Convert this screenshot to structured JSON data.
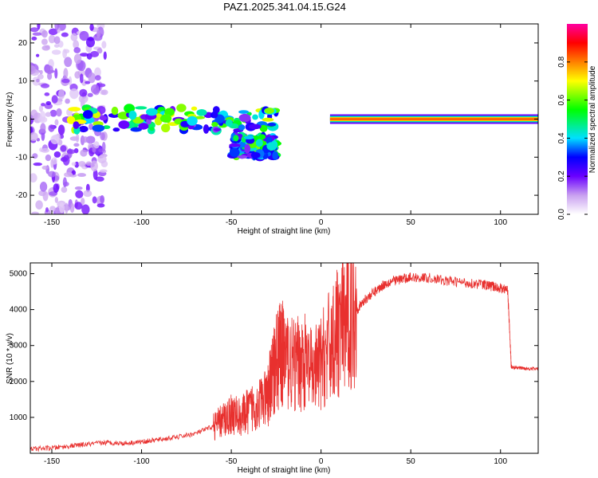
{
  "title": "PAZ1.2025.341.04.15.G24",
  "chart_data": [
    {
      "type": "heatmap",
      "title": "PAZ1.2025.341.04.15.G24",
      "xlabel": "Height of straight line (km)",
      "ylabel": "Frequency (Hz)",
      "xlim": [
        -162,
        121
      ],
      "ylim": [
        -25,
        25
      ],
      "xticks": [
        -150,
        -100,
        -50,
        0,
        50,
        100
      ],
      "yticks": [
        -20,
        -10,
        0,
        10,
        20
      ],
      "colorbar": {
        "label": "Normalized spectral amplitude",
        "range": [
          0,
          1
        ],
        "ticks": [
          0.0,
          0.2,
          0.4,
          0.6,
          0.8
        ]
      },
      "features": [
        {
          "x_range": [
            -162,
            -120
          ],
          "description": "scattered noise",
          "level": 0.1
        },
        {
          "x_range": [
            -140,
            -25
          ],
          "freq_center": 0,
          "level": 0.35
        },
        {
          "x_range": [
            -50,
            -25
          ],
          "freq_center": -7,
          "level": 0.3
        },
        {
          "x_range": [
            5,
            121
          ],
          "freq_center": 0,
          "level": 0.85
        }
      ]
    },
    {
      "type": "line",
      "xlabel": "Height of straight line (km)",
      "ylabel": "SNR (10 * v/v)",
      "xlim": [
        -162,
        121
      ],
      "ylim": [
        0,
        5300
      ],
      "xticks": [
        -150,
        -100,
        -50,
        0,
        50,
        100
      ],
      "yticks": [
        1000,
        2000,
        3000,
        4000,
        5000
      ],
      "color": "#e8302e",
      "series": [
        {
          "name": "SNR",
          "x": [
            -162,
            -150,
            -140,
            -130,
            -120,
            -110,
            -100,
            -90,
            -80,
            -70,
            -60,
            -55,
            -50,
            -45,
            -40,
            -35,
            -30,
            -28,
            -25,
            -22,
            -20,
            -15,
            -10,
            -5,
            0,
            5,
            10,
            15,
            20,
            25,
            30,
            35,
            40,
            45,
            50,
            60,
            70,
            80,
            90,
            95,
            100,
            104,
            106,
            110,
            115,
            121
          ],
          "values": [
            120,
            150,
            200,
            250,
            300,
            280,
            320,
            380,
            450,
            550,
            750,
            900,
            1100,
            1000,
            1200,
            1400,
            1500,
            2000,
            2600,
            2800,
            2700,
            2400,
            2600,
            2200,
            2500,
            3000,
            3400,
            3700,
            4000,
            4300,
            4500,
            4700,
            4800,
            4850,
            4900,
            4880,
            4800,
            4750,
            4700,
            4650,
            4600,
            4550,
            2400,
            2380,
            2360,
            2350
          ]
        }
      ]
    }
  ]
}
